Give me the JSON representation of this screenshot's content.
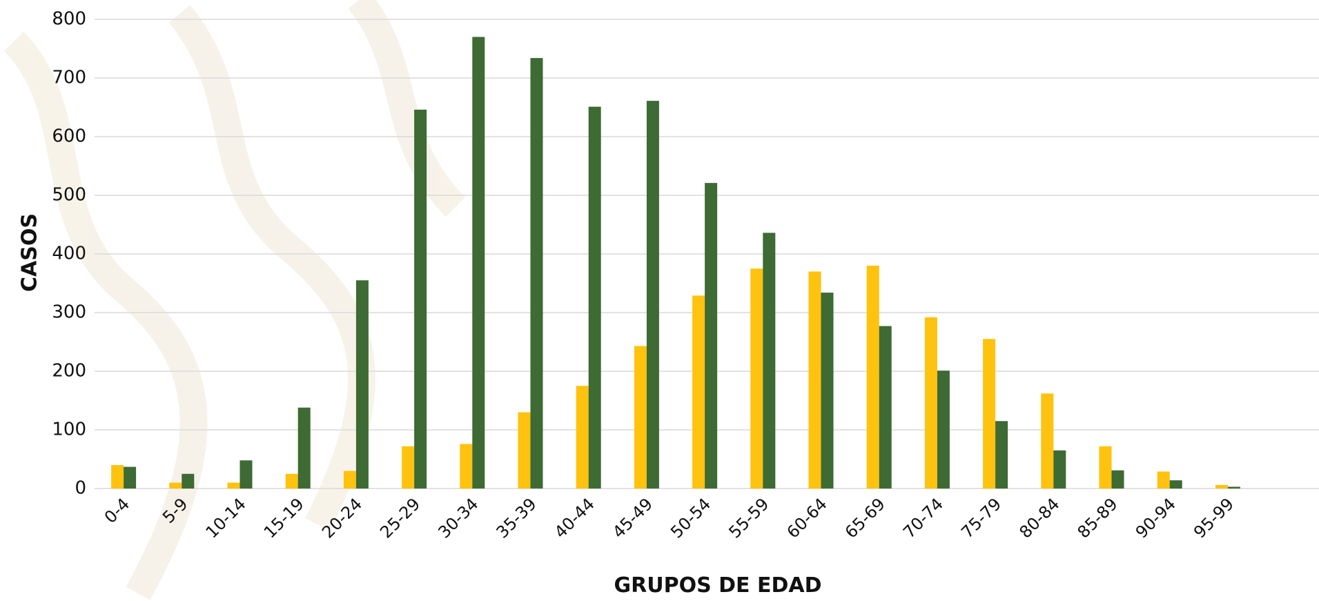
{
  "chart_data": {
    "type": "bar",
    "xlabel": "GRUPOS DE EDAD",
    "ylabel": "CASOS",
    "categories": [
      "0-4",
      "5-9",
      "10-14",
      "15-19",
      "20-24",
      "25-29",
      "30-34",
      "35-39",
      "40-44",
      "45-49",
      "50-54",
      "55-59",
      "60-64",
      "65-69",
      "70-74",
      "75-79",
      "80-84",
      "85-89",
      "90-94",
      "95-99"
    ],
    "series": [
      {
        "color": "#ffc20e",
        "values": [
          40,
          10,
          10,
          25,
          30,
          72,
          76,
          130,
          175,
          243,
          329,
          375,
          370,
          380,
          292,
          255,
          162,
          72,
          29,
          6
        ]
      },
      {
        "color": "#3e6a33",
        "values": [
          37,
          25,
          48,
          138,
          355,
          646,
          770,
          734,
          651,
          661,
          521,
          436,
          334,
          277,
          201,
          115,
          65,
          31,
          14,
          3
        ]
      }
    ],
    "ylim": [
      0,
      800
    ],
    "yticks": [
      0,
      100,
      200,
      300,
      400,
      500,
      600,
      700,
      800
    ],
    "grid": true
  }
}
